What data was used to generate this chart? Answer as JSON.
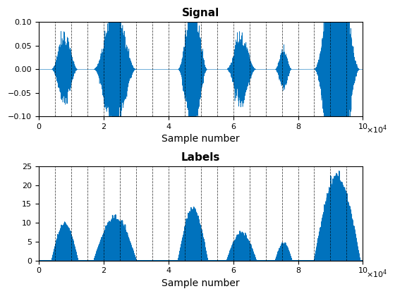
{
  "title1": "Signal",
  "title2": "Labels",
  "xlabel": "Sample number",
  "xlim": [
    0,
    100000
  ],
  "ylim1": [
    -0.1,
    0.1
  ],
  "ylim2": [
    0,
    25
  ],
  "xticks": [
    0,
    20000,
    40000,
    60000,
    80000,
    100000
  ],
  "xtick_labels": [
    "0",
    "2",
    "4",
    "6",
    "8",
    "10"
  ],
  "yticks1": [
    -0.1,
    -0.05,
    0,
    0.05,
    0.1
  ],
  "yticks2": [
    0,
    5,
    10,
    15,
    20,
    25
  ],
  "signal_color": "#0072BD",
  "label_color": "#0072BD",
  "grid_color": "#000000",
  "background_color": "#ffffff",
  "vline_positions": [
    5000,
    10000,
    15000,
    20000,
    25000,
    30000,
    35000,
    40000,
    45000,
    50000,
    55000,
    60000,
    65000,
    70000,
    75000,
    80000,
    85000,
    90000,
    95000,
    100000
  ],
  "n_samples": 100000,
  "bursts": [
    {
      "start": 4000,
      "end": 12000,
      "amplitude": 0.025
    },
    {
      "start": 17000,
      "end": 30000,
      "amplitude": 0.045
    },
    {
      "start": 43000,
      "end": 52000,
      "amplitude": 0.05
    },
    {
      "start": 58000,
      "end": 67000,
      "amplitude": 0.025
    },
    {
      "start": 73000,
      "end": 78000,
      "amplitude": 0.015
    },
    {
      "start": 85000,
      "end": 99000,
      "amplitude": 0.085
    }
  ],
  "label_bursts": [
    {
      "start": 4000,
      "end": 12000,
      "peak": 11
    },
    {
      "start": 17000,
      "end": 30000,
      "peak": 13
    },
    {
      "start": 43000,
      "end": 52000,
      "peak": 15
    },
    {
      "start": 58000,
      "end": 67000,
      "peak": 8
    },
    {
      "start": 73000,
      "end": 78000,
      "peak": 5
    },
    {
      "start": 85000,
      "end": 99000,
      "peak": 25
    }
  ]
}
